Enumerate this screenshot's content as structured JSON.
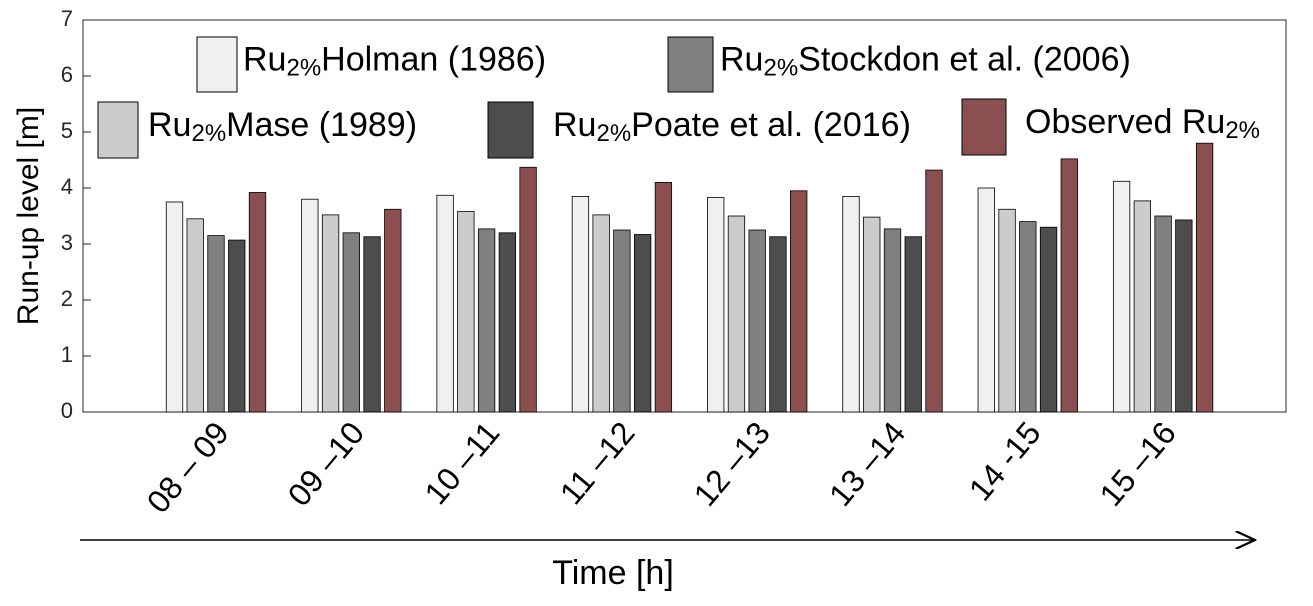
{
  "chart_data": {
    "type": "bar",
    "y_label": "Run-up level [m]",
    "x_label": "Time [h]",
    "categories": [
      "08 – 09",
      "09 –10",
      "10 –11",
      "11 –12",
      "12 –13",
      "13 –14",
      "14 -15",
      "15 –16"
    ],
    "series": [
      {
        "name": "Ru2%Holman (1986)",
        "color": "#f0f0f0",
        "values": [
          3.75,
          3.8,
          3.87,
          3.85,
          3.83,
          3.85,
          4.0,
          4.12
        ]
      },
      {
        "name": "Ru2%Mase (1989)",
        "color": "#cccccc",
        "values": [
          3.45,
          3.52,
          3.58,
          3.52,
          3.5,
          3.48,
          3.62,
          3.77
        ]
      },
      {
        "name": "Ru2%Stockdon et al. (2006)",
        "color": "#808080",
        "values": [
          3.15,
          3.2,
          3.27,
          3.25,
          3.25,
          3.27,
          3.4,
          3.5
        ]
      },
      {
        "name": "Ru2%Poate et al. (2016)",
        "color": "#4d4d4d",
        "values": [
          3.07,
          3.13,
          3.2,
          3.17,
          3.13,
          3.13,
          3.3,
          3.43
        ]
      },
      {
        "name": "Observed Ru2%",
        "color": "#8b4f50",
        "values": [
          3.92,
          3.62,
          4.37,
          4.1,
          3.95,
          4.32,
          4.52,
          4.8
        ]
      }
    ],
    "ylim": [
      0,
      7
    ],
    "yticks": [
      0,
      1,
      2,
      3,
      4,
      5,
      6,
      7
    ],
    "grid": false
  }
}
